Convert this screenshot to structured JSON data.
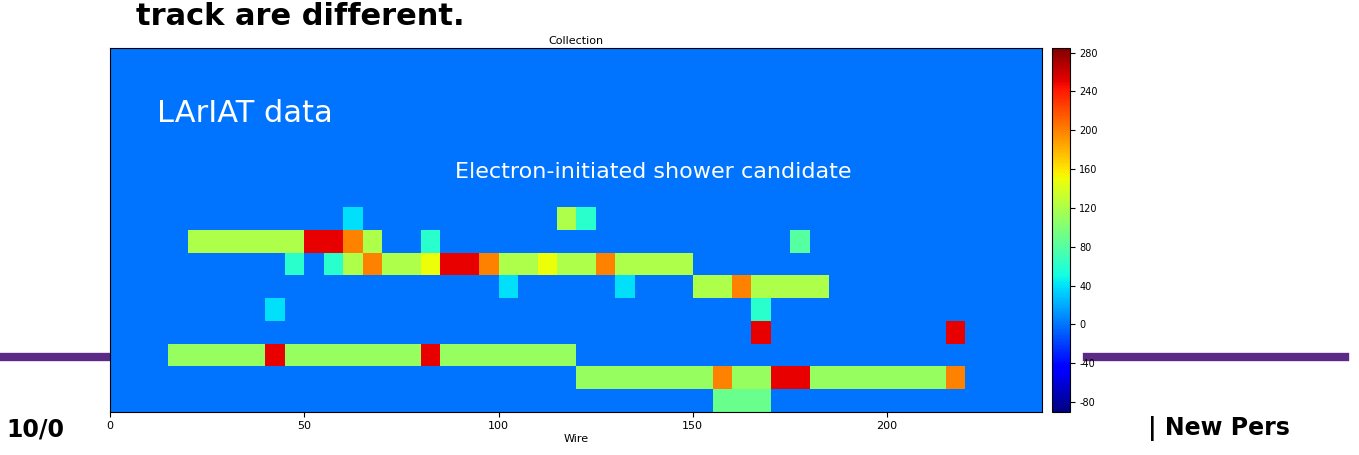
{
  "chart_data": {
    "type": "heatmap",
    "title": "Collection",
    "x_label": "Wire",
    "xlim": [
      0,
      240
    ],
    "xticks": [
      0,
      50,
      100,
      150,
      200
    ],
    "tick_labels": "x",
    "annotations": [
      "LArIAT data",
      "Electron-initiated shower candidate"
    ],
    "colorbar_range": [
      -90,
      285
    ],
    "colorbar_ticks": [
      -80,
      -40,
      0,
      40,
      80,
      120,
      160,
      200,
      240,
      280
    ],
    "cells": [
      [
        0,
        0,
        0,
        0,
        0,
        0,
        0,
        0,
        0,
        0,
        0,
        0,
        0,
        0,
        0,
        0,
        0,
        0,
        0,
        0,
        0,
        0,
        0,
        0,
        0,
        0,
        0,
        0,
        0,
        0,
        0,
        0,
        0,
        0,
        0,
        0,
        0,
        0,
        0,
        0,
        0,
        0,
        0,
        0,
        0,
        0,
        0,
        0
      ],
      [
        0,
        0,
        0,
        0,
        0,
        0,
        0,
        0,
        0,
        0,
        0,
        0,
        0,
        0,
        0,
        0,
        0,
        0,
        0,
        0,
        0,
        0,
        0,
        0,
        0,
        0,
        0,
        0,
        0,
        0,
        0,
        0,
        0,
        0,
        0,
        0,
        0,
        0,
        0,
        0,
        0,
        0,
        0,
        0,
        0,
        0,
        0,
        0
      ],
      [
        0,
        0,
        0,
        0,
        0,
        0,
        0,
        0,
        0,
        0,
        0,
        0,
        0,
        0,
        0,
        0,
        0,
        0,
        0,
        0,
        0,
        0,
        0,
        0,
        0,
        0,
        0,
        0,
        0,
        0,
        0,
        0,
        0,
        0,
        0,
        0,
        0,
        0,
        0,
        0,
        0,
        0,
        0,
        0,
        0,
        0,
        0,
        0
      ],
      [
        0,
        0,
        0,
        0,
        0,
        0,
        0,
        0,
        0,
        0,
        0,
        0,
        0,
        0,
        0,
        0,
        0,
        0,
        0,
        0,
        0,
        0,
        0,
        0,
        0,
        0,
        0,
        0,
        0,
        0,
        0,
        0,
        0,
        0,
        0,
        0,
        0,
        0,
        0,
        0,
        0,
        0,
        0,
        0,
        0,
        0,
        0,
        0
      ],
      [
        0,
        0,
        0,
        0,
        0,
        0,
        0,
        0,
        0,
        0,
        0,
        0,
        0,
        0,
        0,
        0,
        0,
        0,
        0,
        0,
        0,
        0,
        0,
        0,
        0,
        0,
        0,
        0,
        0,
        0,
        0,
        0,
        0,
        0,
        0,
        0,
        0,
        0,
        0,
        0,
        0,
        0,
        0,
        0,
        0,
        0,
        0,
        0
      ],
      [
        0,
        0,
        0,
        0,
        0,
        0,
        0,
        0,
        0,
        0,
        0,
        0,
        0,
        0,
        0,
        0,
        0,
        0,
        0,
        0,
        0,
        0,
        0,
        0,
        0,
        0,
        0,
        0,
        0,
        0,
        0,
        0,
        0,
        0,
        0,
        0,
        0,
        0,
        0,
        0,
        0,
        0,
        0,
        0,
        0,
        0,
        0,
        0
      ],
      [
        0,
        0,
        0,
        0,
        0,
        0,
        0,
        0,
        0,
        0,
        0,
        0,
        0,
        0,
        0,
        0,
        0,
        0,
        0,
        0,
        0,
        0,
        0,
        0,
        0,
        0,
        0,
        0,
        0,
        0,
        0,
        0,
        0,
        0,
        0,
        0,
        0,
        0,
        0,
        0,
        0,
        0,
        0,
        0,
        0,
        0,
        0,
        0
      ],
      [
        0,
        0,
        0,
        0,
        0,
        0,
        0,
        0,
        0,
        0,
        0,
        0,
        40,
        0,
        0,
        0,
        0,
        0,
        0,
        0,
        0,
        0,
        0,
        120,
        60,
        0,
        0,
        0,
        0,
        0,
        0,
        0,
        0,
        0,
        0,
        0,
        0,
        0,
        0,
        0,
        0,
        0,
        0,
        0,
        0,
        0,
        0,
        0
      ],
      [
        0,
        0,
        0,
        0,
        120,
        120,
        120,
        120,
        120,
        120,
        250,
        250,
        200,
        120,
        0,
        0,
        60,
        0,
        0,
        0,
        0,
        0,
        0,
        0,
        0,
        0,
        0,
        0,
        0,
        0,
        0,
        0,
        0,
        0,
        0,
        80,
        0,
        0,
        0,
        0,
        0,
        0,
        0,
        0,
        0,
        0,
        0,
        0
      ],
      [
        0,
        0,
        0,
        0,
        0,
        0,
        0,
        0,
        0,
        60,
        0,
        60,
        120,
        200,
        120,
        120,
        150,
        250,
        250,
        200,
        120,
        120,
        150,
        120,
        120,
        200,
        120,
        120,
        120,
        120,
        0,
        0,
        0,
        0,
        0,
        0,
        0,
        0,
        0,
        0,
        0,
        0,
        0,
        0,
        0,
        0,
        0,
        0
      ],
      [
        0,
        0,
        0,
        0,
        0,
        0,
        0,
        0,
        0,
        0,
        0,
        0,
        0,
        0,
        0,
        0,
        0,
        0,
        0,
        0,
        40,
        0,
        0,
        0,
        0,
        0,
        40,
        0,
        0,
        0,
        120,
        120,
        200,
        120,
        120,
        120,
        120,
        0,
        0,
        0,
        0,
        0,
        0,
        0,
        0,
        0,
        0,
        0
      ],
      [
        0,
        0,
        0,
        0,
        0,
        0,
        0,
        0,
        40,
        0,
        0,
        0,
        0,
        0,
        0,
        0,
        0,
        0,
        0,
        0,
        0,
        0,
        0,
        0,
        0,
        0,
        0,
        0,
        0,
        0,
        0,
        0,
        0,
        60,
        0,
        0,
        0,
        0,
        0,
        0,
        0,
        0,
        0,
        0,
        0,
        0,
        0,
        0
      ],
      [
        0,
        0,
        0,
        0,
        0,
        0,
        0,
        0,
        0,
        0,
        0,
        0,
        0,
        0,
        0,
        0,
        0,
        0,
        0,
        0,
        0,
        0,
        0,
        0,
        0,
        0,
        0,
        0,
        0,
        0,
        0,
        0,
        0,
        250,
        0,
        0,
        0,
        0,
        0,
        0,
        0,
        0,
        0,
        250,
        0,
        0,
        0,
        0
      ],
      [
        0,
        0,
        0,
        110,
        110,
        110,
        110,
        110,
        250,
        110,
        110,
        110,
        110,
        110,
        110,
        110,
        250,
        110,
        110,
        110,
        110,
        110,
        110,
        110,
        0,
        0,
        0,
        0,
        0,
        0,
        0,
        0,
        0,
        0,
        0,
        0,
        0,
        0,
        0,
        0,
        0,
        0,
        0,
        0,
        0,
        0,
        0,
        0
      ],
      [
        0,
        0,
        0,
        0,
        0,
        0,
        0,
        0,
        0,
        0,
        0,
        0,
        0,
        0,
        0,
        0,
        0,
        0,
        0,
        0,
        0,
        0,
        0,
        0,
        110,
        110,
        110,
        110,
        110,
        110,
        110,
        200,
        110,
        110,
        250,
        250,
        110,
        110,
        110,
        110,
        110,
        110,
        110,
        200,
        0,
        0,
        0,
        0
      ],
      [
        0,
        0,
        0,
        0,
        0,
        0,
        0,
        0,
        0,
        0,
        0,
        0,
        0,
        0,
        0,
        0,
        0,
        0,
        0,
        0,
        0,
        0,
        0,
        0,
        0,
        0,
        0,
        0,
        0,
        0,
        0,
        90,
        90,
        90,
        0,
        0,
        0,
        0,
        0,
        0,
        0,
        0,
        0,
        0,
        0,
        0,
        0,
        0
      ]
    ]
  },
  "slide": {
    "heading": "track are different.",
    "footer_left": "10/0",
    "footer_right": "| New Pers"
  }
}
